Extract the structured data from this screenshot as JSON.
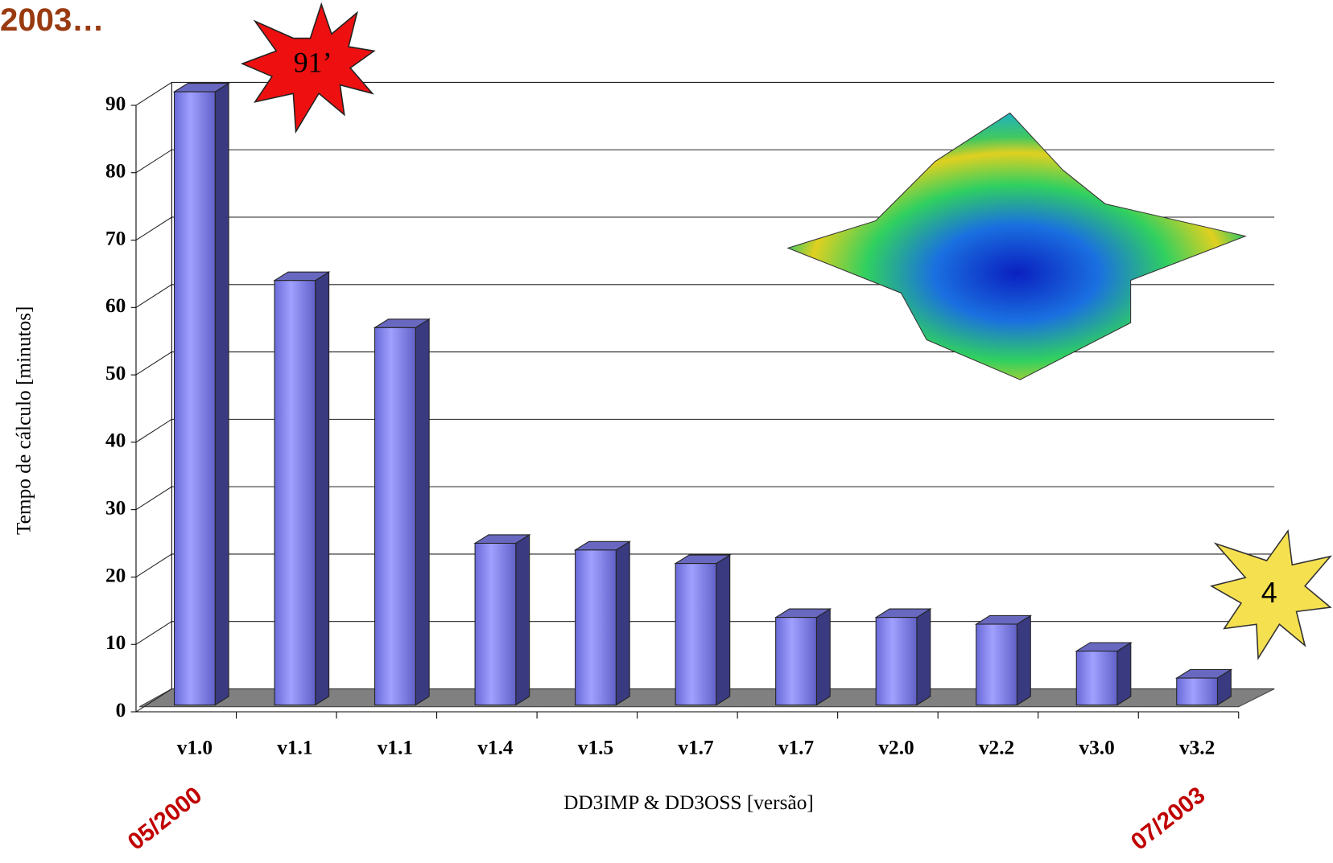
{
  "chart_data": {
    "type": "bar",
    "title": "2003…",
    "xlabel": "DD3IMP & DD3OSS [versão]",
    "ylabel": "Tempo de cálculo [minutos]",
    "categories": [
      "v1.0",
      "v1.1",
      "v1.1",
      "v1.4",
      "v1.5",
      "v1.7",
      "v1.7",
      "v2.0",
      "v2.2",
      "v3.0",
      "v3.2"
    ],
    "values": [
      91,
      63,
      56,
      24,
      23,
      21,
      13,
      13,
      12,
      8,
      4
    ],
    "color": "#8c8cf0",
    "ylim": [
      0,
      90
    ],
    "yticks": [
      0,
      10,
      20,
      30,
      40,
      50,
      60,
      70,
      80,
      90
    ],
    "grid": true,
    "annotations": [
      "91’",
      "4",
      "05/2000",
      "07/2003"
    ]
  }
}
